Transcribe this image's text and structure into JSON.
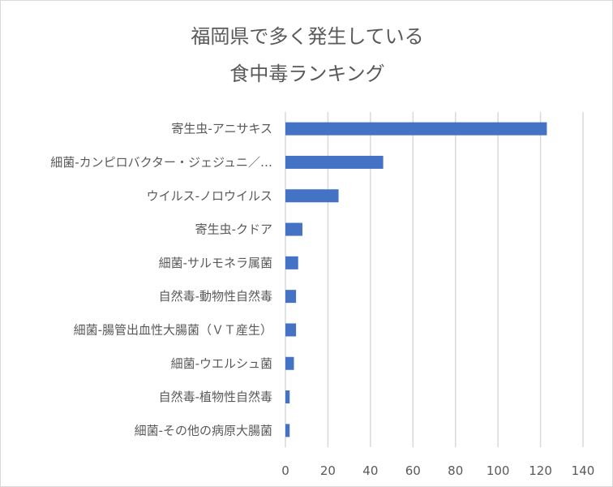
{
  "chart_data": {
    "type": "bar",
    "orientation": "horizontal",
    "title_lines": [
      "福岡県で多く発生している",
      "食中毒ランキング"
    ],
    "categories": [
      "寄生虫-アニサキス",
      "細菌-カンピロバクター・ジェジュニ／…",
      "ウイルス-ノロウイルス",
      "寄生虫-クドア",
      "細菌-サルモネラ属菌",
      "自然毒-動物性自然毒",
      "細菌-腸管出血性大腸菌（ＶＴ産生）",
      "細菌-ウエルシュ菌",
      "自然毒-植物性自然毒",
      "細菌-その他の病原大腸菌"
    ],
    "values": [
      123,
      46,
      25,
      8,
      6,
      5,
      5,
      4,
      2,
      2
    ],
    "xlim": [
      0,
      140
    ],
    "xticks": [
      0,
      20,
      40,
      60,
      80,
      100,
      120,
      140
    ],
    "grid": true,
    "bar_color": "#4472c4",
    "xlabel": "",
    "ylabel": ""
  }
}
